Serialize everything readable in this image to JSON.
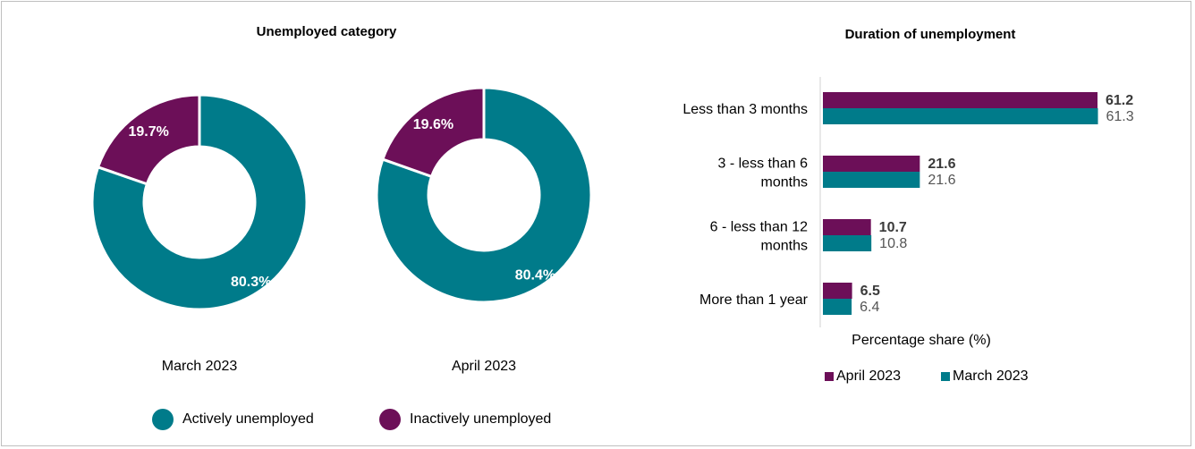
{
  "colors": {
    "active": "#007b8a",
    "inactive": "#6c0f58"
  },
  "left_title": "Unemployed category",
  "right_title": "Duration of unemployment",
  "legend_left": {
    "active": "Actively unemployed",
    "inactive": "Inactively unemployed"
  },
  "legend_right": {
    "april": "April 2023",
    "march": "March 2023"
  },
  "xlabel": "Percentage share (%)",
  "chart_data": [
    {
      "type": "pie",
      "title": "Unemployed category",
      "charts": [
        {
          "name": "March 2023",
          "slices": [
            {
              "label": "Actively unemployed",
              "value": 80.3,
              "text": "80.3%"
            },
            {
              "label": "Inactively unemployed",
              "value": 19.7,
              "text": "19.7%"
            }
          ]
        },
        {
          "name": "April 2023",
          "slices": [
            {
              "label": "Actively unemployed",
              "value": 80.4,
              "text": "80.4%"
            },
            {
              "label": "Inactively unemployed",
              "value": 19.6,
              "text": "19.6%"
            }
          ]
        }
      ]
    },
    {
      "type": "bar",
      "title": "Duration of unemployment",
      "orientation": "horizontal",
      "categories": [
        [
          "Less than 3 months"
        ],
        [
          "3 - less than 6",
          "months"
        ],
        [
          "6 - less than 12",
          "months"
        ],
        [
          "More than 1 year"
        ]
      ],
      "series": [
        {
          "name": "April 2023",
          "values": [
            61.2,
            21.6,
            10.7,
            6.5
          ],
          "labels": [
            "61.2",
            "21.6",
            "10.7",
            "6.5"
          ]
        },
        {
          "name": "March 2023",
          "values": [
            61.3,
            21.6,
            10.8,
            6.4
          ],
          "labels": [
            "61.3",
            "21.6",
            "10.8",
            "6.4"
          ]
        }
      ],
      "xlabel": "Percentage share (%)",
      "xlim": [
        0,
        65
      ],
      "grid": false,
      "legend": "bottom"
    }
  ]
}
